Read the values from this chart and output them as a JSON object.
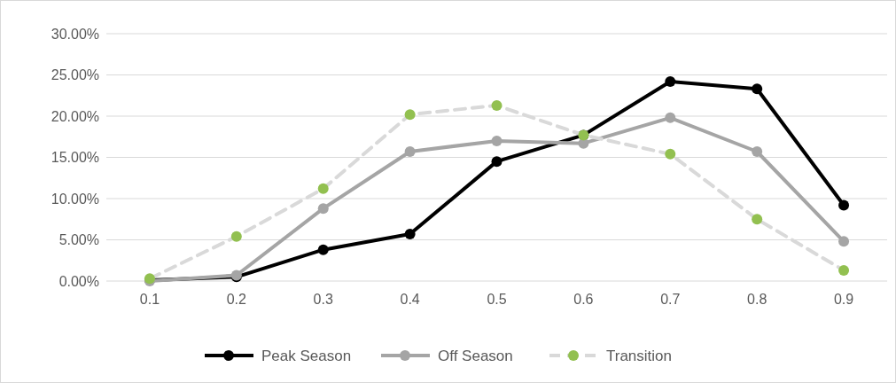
{
  "chart_data": {
    "type": "line",
    "categories": [
      "0.1",
      "0.2",
      "0.3",
      "0.4",
      "0.5",
      "0.6",
      "0.7",
      "0.8",
      "0.9"
    ],
    "ylim": [
      0,
      30
    ],
    "yticks": [
      {
        "value": 0,
        "label": "0.00%"
      },
      {
        "value": 5,
        "label": "5.00%"
      },
      {
        "value": 10,
        "label": "10.00%"
      },
      {
        "value": 15,
        "label": "15.00%"
      },
      {
        "value": 20,
        "label": "20.00%"
      },
      {
        "value": 25,
        "label": "25.00%"
      },
      {
        "value": 30,
        "label": "30.00%"
      }
    ],
    "grid": "y",
    "legend": "bottom",
    "marker": "circle",
    "series": [
      {
        "name": "Peak Season",
        "color": "#000000",
        "line_style": "solid",
        "values": [
          0.1,
          0.5,
          3.8,
          5.7,
          14.5,
          17.7,
          24.2,
          23.3,
          9.2
        ]
      },
      {
        "name": "Off Season",
        "color": "#a5a5a5",
        "line_style": "solid",
        "values": [
          0,
          0.7,
          8.8,
          15.7,
          17.0,
          16.7,
          19.8,
          15.7,
          4.8
        ]
      },
      {
        "name": "Transition",
        "color": "#d9d9d9",
        "colors": [
          "#92c050",
          "#92c050",
          "#92c050",
          "#92c050",
          "#92c050",
          "#92c050",
          "#92c050",
          "#92c050",
          "#92c050"
        ],
        "line_style": "dashed",
        "values": [
          0.3,
          5.4,
          11.2,
          20.2,
          21.3,
          17.7,
          15.4,
          7.5,
          1.3
        ]
      }
    ]
  }
}
